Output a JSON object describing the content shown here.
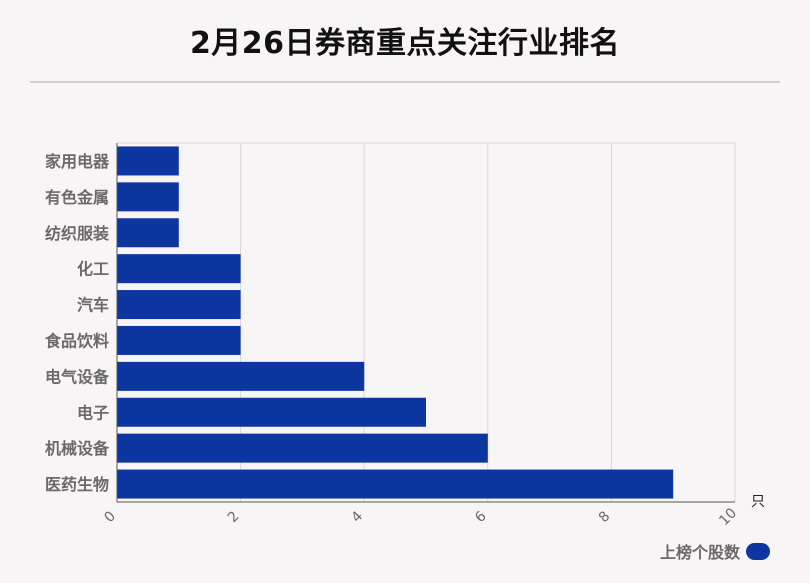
{
  "title": "2月26日券商重点关注行业排名",
  "legend": {
    "label": "上榜个股数"
  },
  "colors": {
    "bar": "#0e36a0",
    "grid": "#d7d7d7",
    "axis": "#555555",
    "label": "#6a6a6a"
  },
  "chart_data": {
    "type": "bar",
    "orientation": "horizontal",
    "categories": [
      "家用电器",
      "有色金属",
      "纺织服装",
      "化工",
      "汽车",
      "食品饮料",
      "电气设备",
      "电子",
      "机械设备",
      "医药生物"
    ],
    "series": [
      {
        "name": "上榜个股数",
        "values": [
          1,
          1,
          1,
          2,
          2,
          2,
          4,
          5,
          6,
          9
        ]
      }
    ],
    "xlim": [
      0,
      10
    ],
    "xticks": [
      0,
      2,
      4,
      6,
      8,
      10
    ],
    "xunit": "只",
    "grid": true,
    "legend_position": "bottom-right"
  }
}
